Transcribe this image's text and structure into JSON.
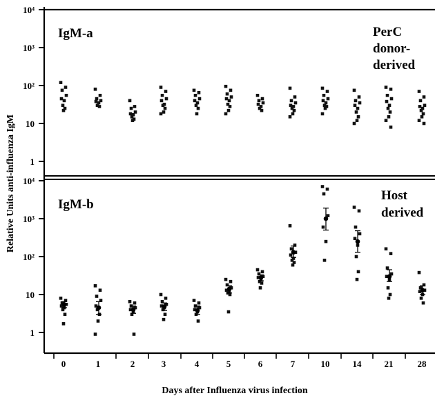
{
  "chart_data": {
    "type": "scatter",
    "xlabel": "Days after Influenza virus infection",
    "ylabel": "Relative Units anti-influenza IgM",
    "categories": [
      "0",
      "1",
      "2",
      "3",
      "4",
      "5",
      "6",
      "7",
      "10",
      "14",
      "21",
      "28"
    ],
    "yscale": "log",
    "ylim": [
      0.3,
      10000
    ],
    "y_tick_labels": [
      "1",
      "10",
      "10²",
      "10³",
      "10⁴"
    ],
    "panels": [
      {
        "label": "IgM-a",
        "annotation": [
          "PerC",
          "donor-",
          "derived"
        ],
        "points": [
          [
            120,
            90,
            75,
            55,
            45,
            40,
            30,
            25,
            22
          ],
          [
            80,
            55,
            45,
            40,
            38,
            35,
            30,
            28
          ],
          [
            40,
            28,
            25,
            20,
            18,
            17,
            15,
            13,
            12
          ],
          [
            90,
            70,
            55,
            45,
            40,
            32,
            30,
            25,
            20,
            18
          ],
          [
            75,
            65,
            55,
            45,
            40,
            35,
            30,
            25,
            18
          ],
          [
            95,
            75,
            60,
            50,
            45,
            40,
            32,
            28,
            22,
            18
          ],
          [
            55,
            45,
            40,
            35,
            32,
            28,
            25,
            22
          ],
          [
            85,
            50,
            40,
            35,
            30,
            28,
            25,
            22,
            18,
            15
          ],
          [
            85,
            70,
            55,
            45,
            40,
            35,
            30,
            28,
            25,
            18
          ],
          [
            75,
            50,
            40,
            35,
            30,
            25,
            20,
            15,
            12,
            10
          ],
          [
            90,
            80,
            55,
            45,
            38,
            30,
            25,
            20,
            15,
            12,
            8
          ],
          [
            70,
            50,
            40,
            30,
            28,
            25,
            22,
            18,
            15,
            12,
            10
          ]
        ],
        "means": [
          null,
          null,
          null,
          null,
          null,
          null,
          null,
          null,
          null,
          null,
          null,
          null
        ]
      },
      {
        "label": "IgM-b",
        "annotation": [
          "Host",
          "derived"
        ],
        "points": [
          [
            8,
            7,
            6,
            5.5,
            5,
            4.5,
            4,
            3,
            1.7
          ],
          [
            17,
            13,
            9,
            7,
            5,
            4.5,
            4,
            3,
            2,
            0.9
          ],
          [
            6.5,
            6,
            5,
            4.5,
            4,
            3.5,
            3,
            0.9
          ],
          [
            10,
            8,
            6.5,
            5.5,
            5,
            4.5,
            4,
            3,
            2.2
          ],
          [
            7,
            6,
            5,
            4.5,
            4,
            3.5,
            3,
            2
          ],
          [
            25,
            22,
            18,
            15,
            13,
            12,
            11,
            10,
            3.5
          ],
          [
            45,
            40,
            35,
            30,
            28,
            25,
            22,
            20,
            15
          ],
          [
            650,
            200,
            160,
            130,
            110,
            90,
            80,
            70,
            60
          ],
          [
            7000,
            6000,
            4500,
            1200,
            600,
            250,
            80
          ],
          [
            2000,
            1600,
            600,
            400,
            300,
            200,
            100,
            40,
            25
          ],
          [
            160,
            120,
            50,
            35,
            30,
            25,
            15,
            10,
            8
          ],
          [
            38,
            18,
            15,
            13,
            12,
            10,
            8,
            6
          ]
        ],
        "means": [
          5.5,
          4.5,
          4,
          4.8,
          3.8,
          14,
          28,
          130,
          1000,
          250,
          30,
          13
        ],
        "err_low": [
          4.5,
          3,
          3.2,
          3.8,
          3,
          11,
          23,
          95,
          500,
          130,
          22,
          10
        ],
        "err_high": [
          6.5,
          6.5,
          5,
          6,
          5,
          17,
          33,
          190,
          1900,
          480,
          45,
          17
        ]
      }
    ]
  }
}
